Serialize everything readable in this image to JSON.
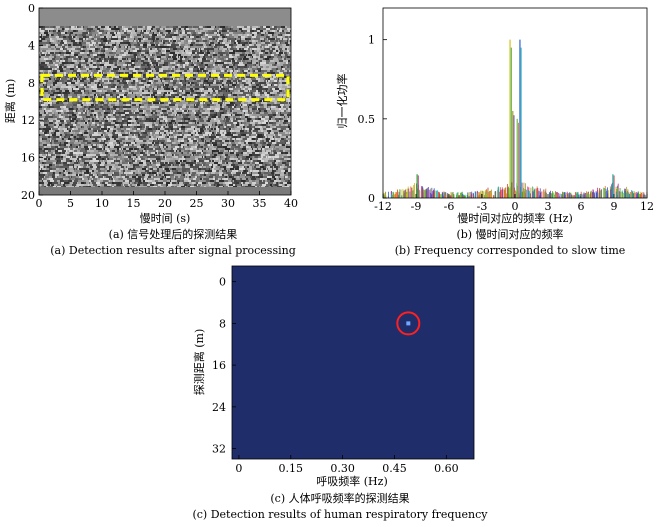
{
  "chart_data": [
    {
      "type": "heatmap",
      "panel": "a",
      "xlabel": "慢时间 (s)",
      "ylabel": "距离 (m)",
      "xticks": [
        0,
        5,
        10,
        15,
        20,
        25,
        30,
        35,
        40
      ],
      "yticks": [
        0,
        4,
        8,
        12,
        16,
        20
      ],
      "xlim": [
        0,
        40
      ],
      "ylim": [
        0,
        20
      ],
      "y_inverted": true,
      "highlight_box": {
        "x": [
          0,
          40
        ],
        "y": [
          7.2,
          9.8
        ],
        "color": "#ffff00",
        "style": "dashed"
      },
      "caption_cn": "(a) 信号处理后的探测结果",
      "caption_en": "(a) Detection results after signal processing"
    },
    {
      "type": "line",
      "panel": "b",
      "xlabel": "慢时间对应的频率 (Hz)",
      "ylabel": "归一化功率",
      "xticks": [
        -12,
        -9,
        -6,
        -3,
        0,
        3,
        6,
        9,
        12
      ],
      "yticks": [
        0,
        0.5,
        1
      ],
      "ytick_labels": [
        "0",
        "0.5",
        "1"
      ],
      "xlim": [
        -12,
        12
      ],
      "ylim": [
        0,
        1.2
      ],
      "peaks": [
        {
          "x": -0.45,
          "y": 1.0
        },
        {
          "x": 0.45,
          "y": 1.0
        },
        {
          "x": -0.2,
          "y": 0.55
        },
        {
          "x": 0.2,
          "y": 0.5
        },
        {
          "x": -8.9,
          "y": 0.15
        },
        {
          "x": 8.9,
          "y": 0.15
        }
      ],
      "caption_cn": "(b) 慢时间对应的频率",
      "caption_en": "(b) Frequency corresponded to slow time"
    },
    {
      "type": "heatmap",
      "panel": "c",
      "xlabel": "呼吸频率 (Hz)",
      "ylabel": "探测距离 (m)",
      "xticks": [
        0,
        0.15,
        0.3,
        0.45,
        0.6
      ],
      "xtick_labels": [
        "0",
        "0.15",
        "0.30",
        "0.45",
        "0.60"
      ],
      "yticks": [
        0,
        8,
        16,
        24,
        32
      ],
      "xlim": [
        -0.02,
        0.68
      ],
      "ylim": [
        -3,
        34
      ],
      "y_inverted": true,
      "background_color": "#1f2d6b",
      "target": {
        "x": 0.49,
        "y": 8.0,
        "marker_color": "#ff2020"
      },
      "caption_cn": "(c) 人体呼吸频率的探测结果",
      "caption_en": "(c) Detection results of human respiratory frequency"
    }
  ]
}
